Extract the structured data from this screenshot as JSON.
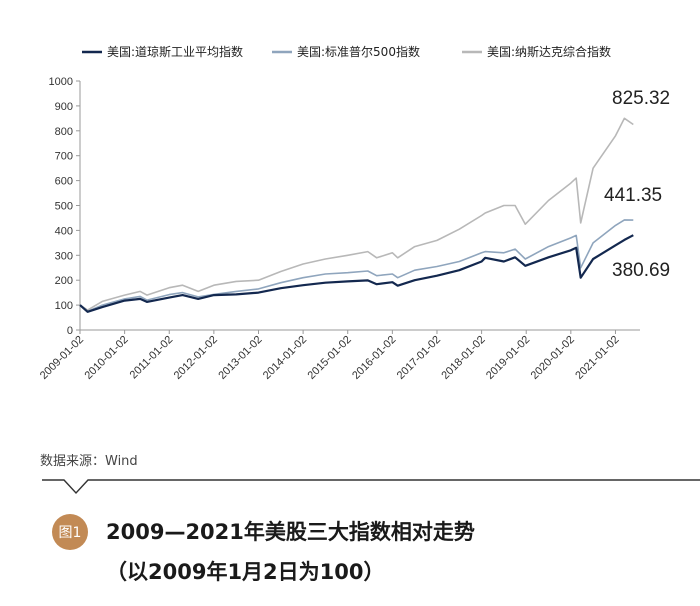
{
  "chart_data": {
    "type": "line",
    "title": "",
    "xlabel": "",
    "ylabel": "",
    "ylim": [
      0,
      1000
    ],
    "yticks": [
      0,
      100,
      200,
      300,
      400,
      500,
      600,
      700,
      800,
      900,
      1000
    ],
    "xtick_labels": [
      "2009-01-02",
      "2010-01-02",
      "2011-01-02",
      "2012-01-02",
      "2013-01-02",
      "2014-01-02",
      "2015-01-02",
      "2016-01-02",
      "2017-01-02",
      "2018-01-02",
      "2019-01-02",
      "2020-01-02",
      "2021-01-02"
    ],
    "grid": false,
    "legend_position": "top",
    "series": [
      {
        "name": "美国:道琼斯工业平均指数",
        "color": "#13284f",
        "end_label": "380.69",
        "x": [
          2009.0,
          2009.17,
          2009.5,
          2010.0,
          2010.35,
          2010.5,
          2011.0,
          2011.3,
          2011.65,
          2012.0,
          2012.5,
          2013.0,
          2013.5,
          2014.0,
          2014.5,
          2015.0,
          2015.45,
          2015.65,
          2016.0,
          2016.12,
          2016.5,
          2017.0,
          2017.5,
          2018.0,
          2018.08,
          2018.5,
          2018.75,
          2018.98,
          2019.5,
          2020.0,
          2020.12,
          2020.22,
          2020.5,
          2021.0,
          2021.2,
          2021.4
        ],
        "values": [
          100,
          73,
          92,
          118,
          125,
          113,
          130,
          140,
          125,
          140,
          143,
          150,
          168,
          180,
          190,
          195,
          199,
          184,
          192,
          178,
          200,
          218,
          240,
          275,
          290,
          275,
          292,
          258,
          292,
          320,
          330,
          210,
          285,
          340,
          362,
          380.69
        ]
      },
      {
        "name": "美国:标准普尔500指数",
        "color": "#8fa5bd",
        "end_label": "441.35",
        "x": [
          2009.0,
          2009.17,
          2009.5,
          2010.0,
          2010.35,
          2010.5,
          2011.0,
          2011.3,
          2011.65,
          2012.0,
          2012.5,
          2013.0,
          2013.5,
          2014.0,
          2014.5,
          2015.0,
          2015.45,
          2015.65,
          2016.0,
          2016.12,
          2016.5,
          2017.0,
          2017.5,
          2018.0,
          2018.08,
          2018.5,
          2018.75,
          2018.98,
          2019.5,
          2020.0,
          2020.12,
          2020.22,
          2020.5,
          2021.0,
          2021.2,
          2021.4
        ],
        "values": [
          100,
          75,
          100,
          125,
          135,
          120,
          142,
          150,
          133,
          143,
          155,
          165,
          190,
          210,
          225,
          230,
          237,
          218,
          225,
          210,
          240,
          255,
          275,
          310,
          315,
          310,
          325,
          285,
          335,
          370,
          380,
          250,
          350,
          420,
          442,
          441.35
        ]
      },
      {
        "name": "美国:纳斯达克综合指数",
        "color": "#b8b8b8",
        "end_label": "825.32",
        "x": [
          2009.0,
          2009.17,
          2009.5,
          2010.0,
          2010.35,
          2010.5,
          2011.0,
          2011.3,
          2011.65,
          2012.0,
          2012.5,
          2013.0,
          2013.5,
          2014.0,
          2014.5,
          2015.0,
          2015.45,
          2015.65,
          2016.0,
          2016.12,
          2016.5,
          2017.0,
          2017.5,
          2018.0,
          2018.08,
          2018.5,
          2018.75,
          2018.98,
          2019.5,
          2020.0,
          2020.12,
          2020.22,
          2020.5,
          2021.0,
          2021.2,
          2021.4
        ],
        "values": [
          100,
          80,
          115,
          140,
          155,
          140,
          170,
          180,
          155,
          180,
          195,
          200,
          235,
          265,
          285,
          300,
          315,
          290,
          310,
          290,
          335,
          360,
          405,
          460,
          470,
          500,
          500,
          425,
          520,
          590,
          610,
          430,
          650,
          780,
          850,
          825.32
        ]
      }
    ]
  },
  "source": "数据来源：Wind",
  "figure": {
    "badge": "图1",
    "caption_line1": "2009—2021年美股三大指数相对走势",
    "caption_line2": "（以2009年1月2日为100）"
  }
}
